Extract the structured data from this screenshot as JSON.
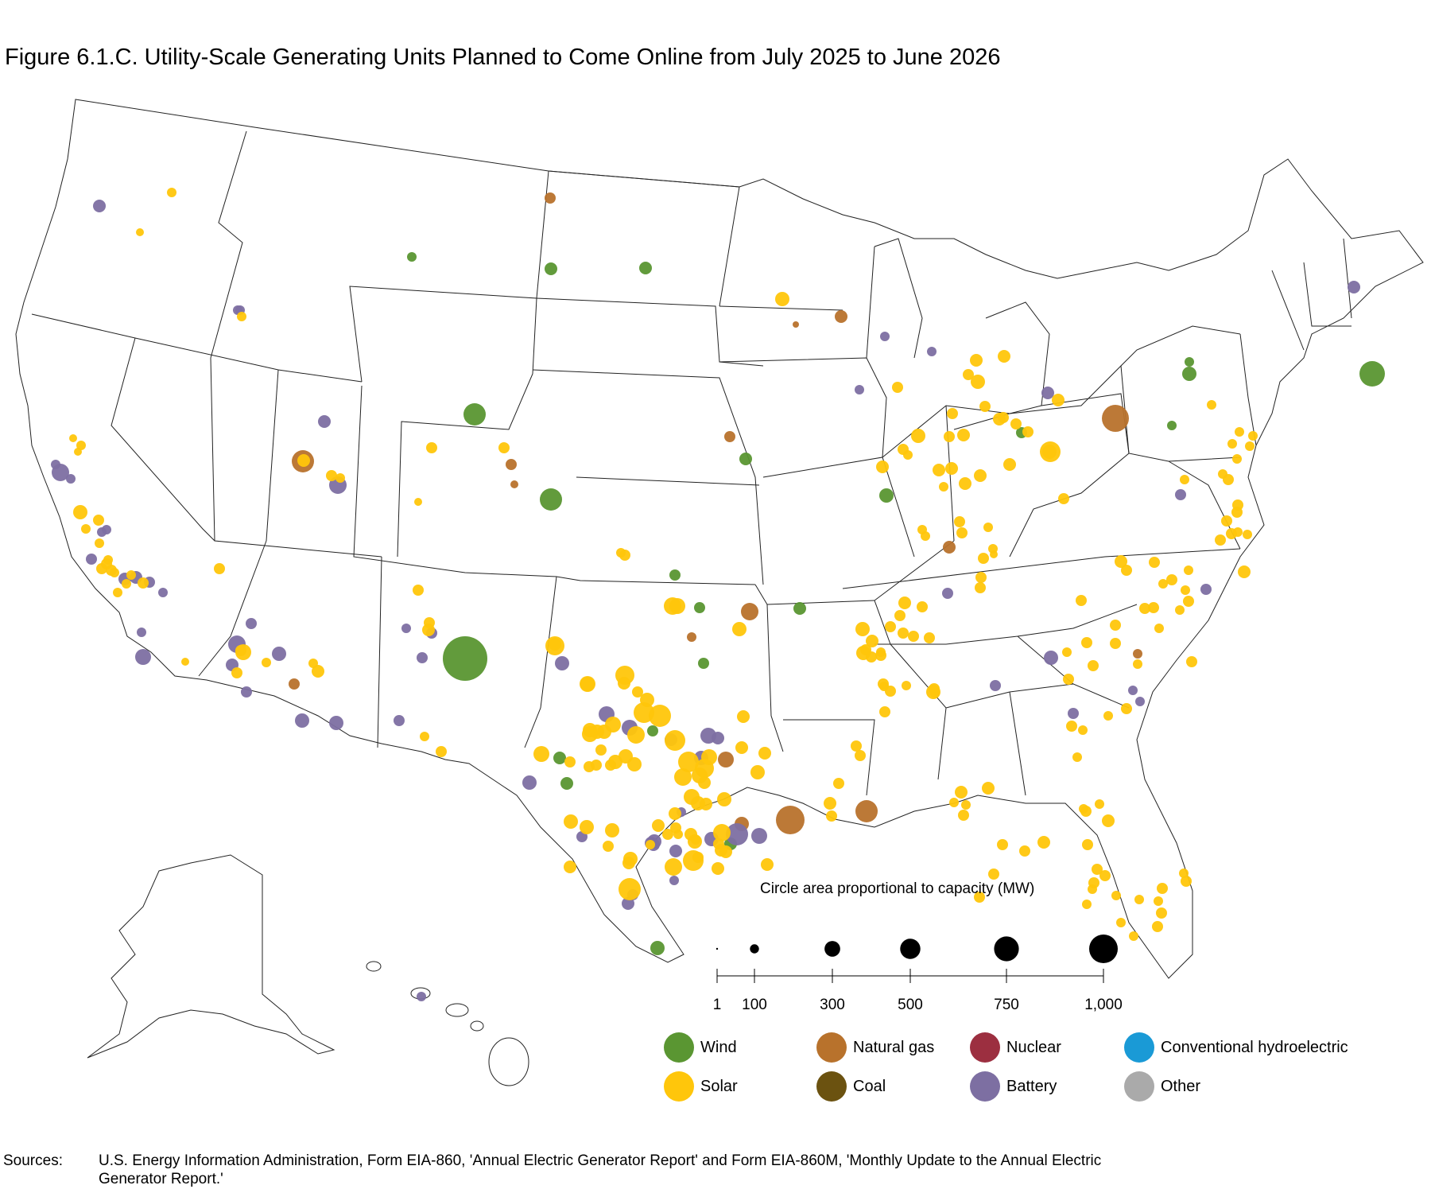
{
  "title": "Figure 6.1.C. Utility-Scale Generating Units Planned to Come Online from July 2025 to June 2026",
  "size_legend": {
    "title": "Circle area proportional to capacity (MW)",
    "values": [
      1,
      100,
      300,
      500,
      750,
      1000
    ],
    "labels": [
      "1",
      "100",
      "300",
      "500",
      "750",
      "1,000"
    ]
  },
  "fuel_legend": [
    {
      "name": "Wind",
      "color": "#5a9632"
    },
    {
      "name": "Natural gas",
      "color": "#b8722c"
    },
    {
      "name": "Nuclear",
      "color": "#9c2f40"
    },
    {
      "name": "Conventional hydroelectric",
      "color": "#1a9ad6"
    },
    {
      "name": "Solar",
      "color": "#ffc60b"
    },
    {
      "name": "Coal",
      "color": "#6b5210"
    },
    {
      "name": "Battery",
      "color": "#7d6fa2"
    },
    {
      "name": "Other",
      "color": "#aaaaaa"
    }
  ],
  "sources": {
    "label": "Sources:",
    "text": "U.S. Energy Information Administration, Form EIA-860, 'Annual Electric Generator Report' and Form EIA-860M, 'Monthly Update to the Annual Electric Generator Report.'"
  }
}
